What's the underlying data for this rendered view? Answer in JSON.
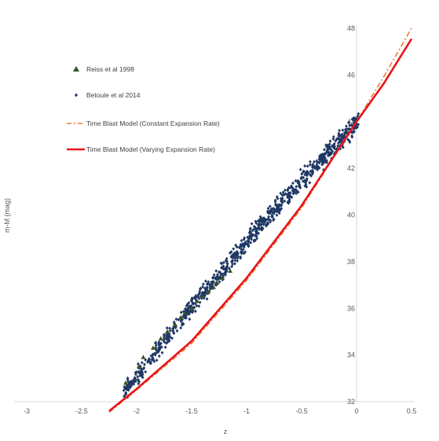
{
  "chart_data": {
    "type": "scatter",
    "title": "",
    "xlabel": "z",
    "ylabel": "m-M (mag)",
    "xlim": [
      -3,
      0.5
    ],
    "ylim": [
      32,
      48
    ],
    "x_ticks": [
      -3,
      -2.5,
      -2,
      -1.5,
      -1,
      -0.5,
      0,
      0.5
    ],
    "x_tick_labels": [
      "-3",
      "-2.5",
      "-2",
      "-1.5",
      "-1",
      "-0.5",
      "0",
      "0.5"
    ],
    "y_ticks": [
      32,
      34,
      36,
      38,
      40,
      42,
      44,
      46,
      48
    ],
    "y_tick_labels": [
      "32",
      "34",
      "36",
      "38",
      "40",
      "42",
      "44",
      "46",
      "48"
    ],
    "grid": false,
    "legend_position": "upper-left",
    "series": [
      {
        "name": "Reiss et al 1998",
        "kind": "scatter",
        "marker": "triangle",
        "color": "#375623",
        "x": [
          -2.1,
          -1.98,
          -1.94,
          -1.85,
          -1.78,
          -1.72,
          -1.65,
          -1.6,
          -1.56,
          -1.5,
          -1.45,
          -1.4,
          -1.35,
          -1.3,
          -1.27,
          -1.22,
          -1.15
        ],
        "y": [
          32.8,
          33.5,
          33.9,
          34.3,
          34.7,
          35.0,
          35.3,
          35.6,
          35.8,
          36.0,
          36.3,
          36.5,
          36.7,
          36.9,
          37.1,
          37.3,
          37.6
        ]
      },
      {
        "name": "Betoule et al 2014",
        "kind": "scatter",
        "marker": "diamond",
        "color": "#1F3864",
        "x_range": [
          -2.12,
          0.02
        ],
        "relation": "y = 43.9 + 4.7*x - 0.35*x^2",
        "spread_mag": 0.35
      },
      {
        "name": "Time Blast Model (Constant Expansion Rate)",
        "kind": "line",
        "style": "dash-dot",
        "color": "#ED7D31",
        "x": [
          -2.25,
          -2.0,
          -1.5,
          -1.0,
          -0.5,
          0.0,
          0.25,
          0.5
        ],
        "y": [
          31.55,
          32.5,
          34.5,
          37.2,
          40.3,
          44.0,
          45.95,
          48.0
        ]
      },
      {
        "name": "Time Blast Model (Varying Expansion Rate)",
        "kind": "line",
        "style": "solid",
        "color": "#E8141B",
        "x": [
          -2.25,
          -2.0,
          -1.5,
          -1.0,
          -0.5,
          0.0,
          0.25,
          0.5
        ],
        "y": [
          31.6,
          32.55,
          34.6,
          37.3,
          40.4,
          44.0,
          45.65,
          47.55
        ]
      }
    ]
  }
}
